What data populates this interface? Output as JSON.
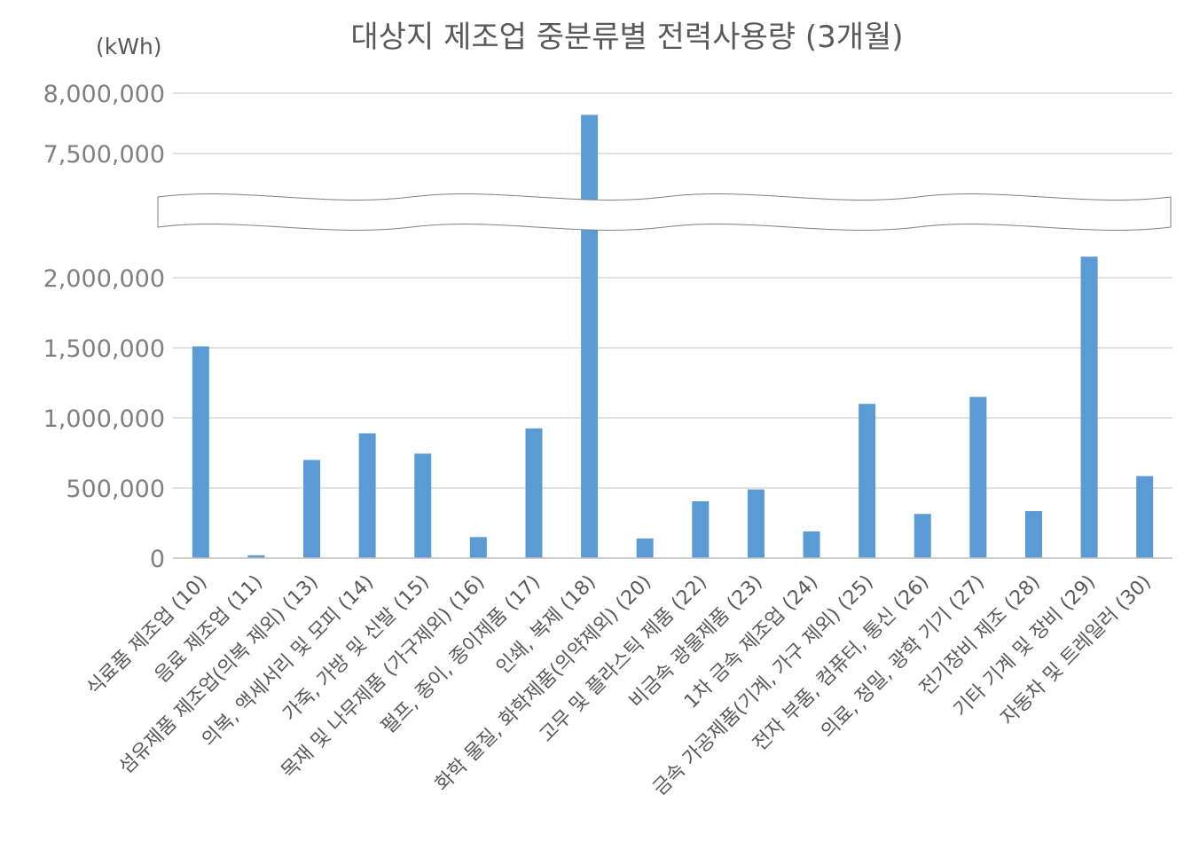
{
  "chart_data": {
    "type": "bar",
    "title": "대상지 제조업 중분류별 전력사용량 (3개월)",
    "unit_label": "(kWh)",
    "ylabel": "",
    "xlabel": "",
    "y_axis_broken": true,
    "y_break_range": [
      2300000,
      7250000
    ],
    "ylim": [
      0,
      8000000
    ],
    "yticks": [
      0,
      500000,
      1000000,
      1500000,
      2000000,
      7500000,
      8000000
    ],
    "ytick_labels": [
      "0",
      "500,000",
      "1,000,000",
      "1,500,000",
      "2,000,000",
      "7,500,000",
      "8,000,000"
    ],
    "gridlines": true,
    "bar_color": "#5B9BD5",
    "categories": [
      "식료품 제조업 (10)",
      "음료 제조업 (11)",
      "섬유제품 제조업(의복 제외) (13)",
      "의복, 액세서리 및 모피 (14)",
      "가죽, 가방 및 신발 (15)",
      "목재 및 나무제품 (가구제외) (16)",
      "펄프, 종이, 종이제품 (17)",
      "인쇄, 복제 (18)",
      "화학 물질, 화학제품(의약제외) (20)",
      "고무 및 플라스틱 제품 (22)",
      "비금속 광물제품 (23)",
      "1차 금속 제조업 (24)",
      "금속 가공제품(기계, 가구 제외) (25)",
      "전자 부품, 컴퓨터, 통신 (26)",
      "의료, 정밀, 광학 기기 (27)",
      "전기장비 제조 (28)",
      "기타 기계 및 장비 (29)",
      "자동차 및 트레일러 (30)"
    ],
    "values": [
      1510000,
      20000,
      700000,
      890000,
      745000,
      150000,
      925000,
      7820000,
      140000,
      405000,
      490000,
      190000,
      1100000,
      315000,
      1150000,
      335000,
      2150000,
      585000
    ]
  }
}
